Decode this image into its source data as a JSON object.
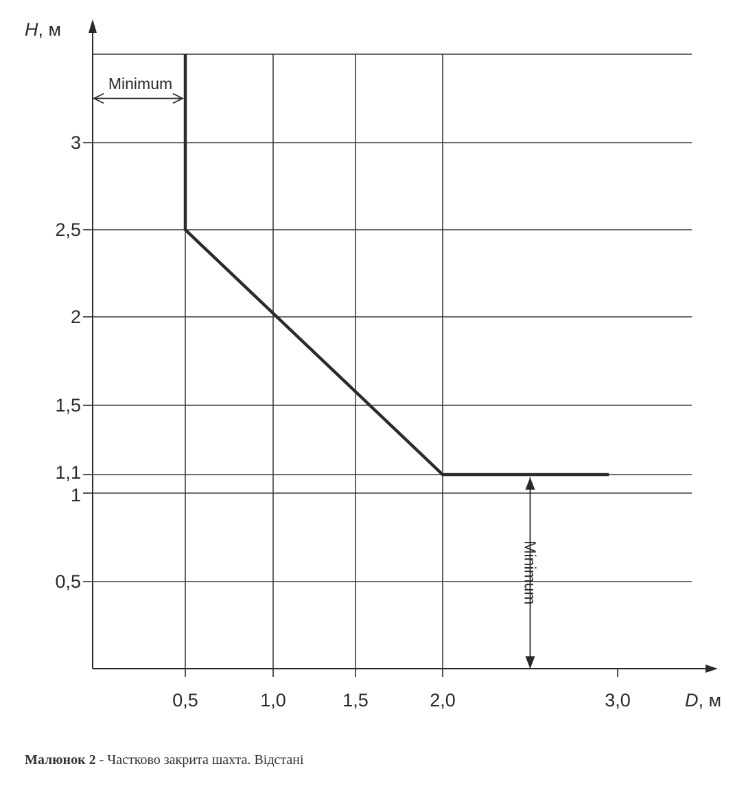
{
  "chart_data": {
    "type": "line",
    "xlabel": {
      "var": "D",
      "unit": ", м"
    },
    "ylabel": {
      "var": "H",
      "unit": ", м"
    },
    "xlim": [
      0,
      3.5
    ],
    "ylim": [
      0,
      3.5
    ],
    "x_ticks": [
      {
        "value": 0.5,
        "label": "0,5"
      },
      {
        "value": 1.0,
        "label": "1,0"
      },
      {
        "value": 1.5,
        "label": "1,5"
      },
      {
        "value": 2.0,
        "label": "2,0"
      },
      {
        "value": 3.0,
        "label": "3,0"
      }
    ],
    "y_ticks": [
      {
        "value": 0.5,
        "label": "0,5"
      },
      {
        "value": 1.0,
        "label": "1"
      },
      {
        "value": 1.1,
        "label": "1,1"
      },
      {
        "value": 1.5,
        "label": "1,5"
      },
      {
        "value": 2.0,
        "label": "2"
      },
      {
        "value": 2.5,
        "label": "2,5"
      },
      {
        "value": 3.0,
        "label": "3"
      }
    ],
    "grid_x": [
      0.5,
      1.0,
      1.5,
      2.0
    ],
    "grid_y": [
      0.5,
      1.0,
      1.1,
      1.5,
      2.0,
      2.5,
      3.0,
      3.5
    ],
    "grid": true,
    "series": [
      {
        "x": [
          0.5,
          0.5,
          2.0,
          2.95
        ],
        "y": [
          3.5,
          2.5,
          1.1,
          1.1
        ]
      }
    ],
    "annotations": [
      {
        "text": "Minimum",
        "kind": "horizontal",
        "x_range": [
          0,
          0.5
        ],
        "y": 3.25
      },
      {
        "text": "Minimum",
        "kind": "vertical",
        "x": 2.5,
        "y_range": [
          0,
          1.1
        ]
      }
    ],
    "colors": {
      "curve": "#2b2b2b",
      "grid": "#3a3a3a",
      "axis": "#2a2a2a",
      "text": "#2a2a2a"
    }
  },
  "caption": {
    "bold": "Малюнок 2",
    "rest": " - Частково закрита шахта. Відстані"
  }
}
